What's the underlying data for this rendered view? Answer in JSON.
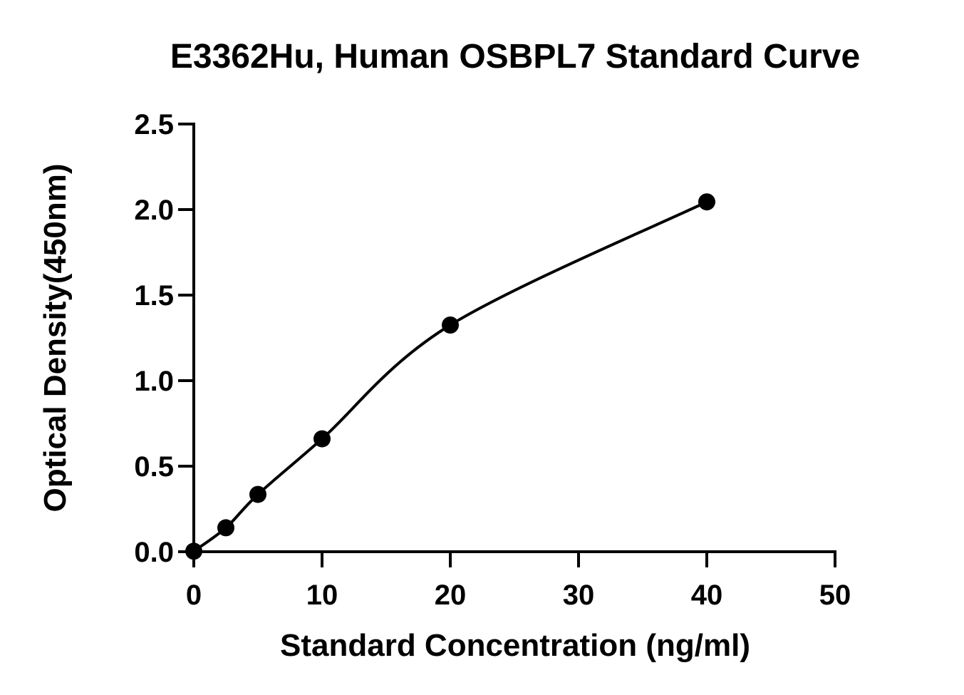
{
  "chart_data": {
    "type": "scatter",
    "title": "E3362Hu, Human OSBPL7 Standard Curve",
    "x_label": "Standard Concentration (ng/ml)",
    "y_label": "Optical Density(450nm)",
    "x": [
      0,
      2.5,
      5,
      10,
      20,
      40
    ],
    "values": [
      0.003,
      0.14,
      0.335,
      0.66,
      1.325,
      2.045
    ],
    "color": "#000000",
    "xlim": [
      0,
      50
    ],
    "xticks": [
      0,
      10,
      20,
      30,
      40,
      50
    ],
    "ylim": [
      0,
      2.5
    ],
    "yticks": [
      {
        "value": 0,
        "label": "0.0"
      },
      0.5,
      {
        "value": 1,
        "label": "1.0"
      },
      1.5,
      {
        "value": 2,
        "label": "2.0"
      },
      2.5
    ],
    "grid": false
  }
}
